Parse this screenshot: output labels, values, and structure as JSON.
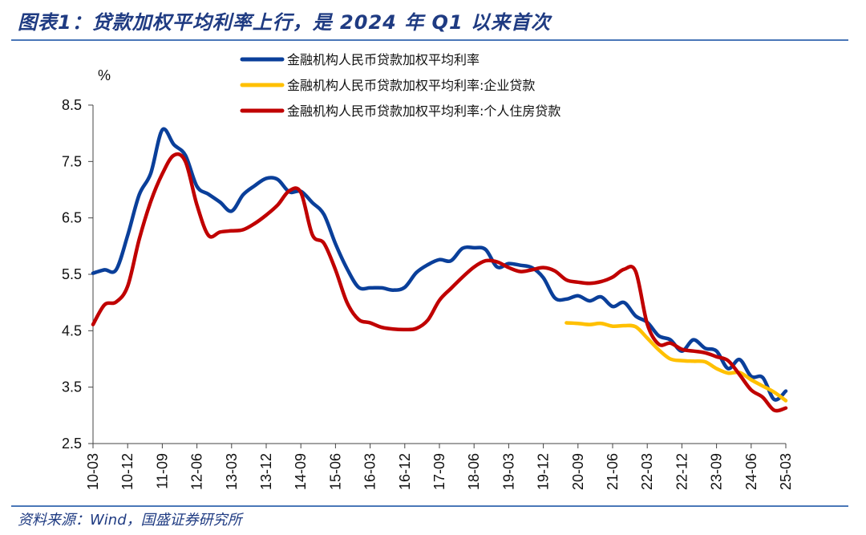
{
  "title": "图表1：贷款加权平均利率上行，是 2024 年 Q1 以来首次",
  "source": "资料来源：Wind，国盛证券研究所",
  "chart_data": {
    "type": "line",
    "ylabel": "%",
    "ylim": [
      2.5,
      8.5
    ],
    "yticks": [
      "8.5",
      "7.5",
      "6.5",
      "5.5",
      "4.5",
      "3.5",
      "2.5"
    ],
    "xticks": [
      "10-03",
      "10-12",
      "11-09",
      "12-06",
      "13-03",
      "13-12",
      "14-09",
      "15-06",
      "16-03",
      "16-12",
      "17-09",
      "18-06",
      "19-03",
      "19-12",
      "20-09",
      "21-06",
      "22-03",
      "22-12",
      "23-09",
      "24-06",
      "25-03"
    ],
    "legend_position": "top",
    "series": [
      {
        "name": "金融机构人民币贷款加权平均利率",
        "color": "#0a3f9a",
        "points": [
          [
            "10-03",
            5.52
          ],
          [
            "10-06",
            5.58
          ],
          [
            "10-09",
            5.58
          ],
          [
            "10-12",
            6.19
          ],
          [
            "11-03",
            6.91
          ],
          [
            "11-06",
            7.29
          ],
          [
            "11-09",
            8.06
          ],
          [
            "11-12",
            7.8
          ],
          [
            "12-03",
            7.61
          ],
          [
            "12-06",
            7.06
          ],
          [
            "12-09",
            6.92
          ],
          [
            "12-12",
            6.78
          ],
          [
            "13-03",
            6.62
          ],
          [
            "13-06",
            6.91
          ],
          [
            "13-09",
            7.07
          ],
          [
            "13-12",
            7.2
          ],
          [
            "14-03",
            7.18
          ],
          [
            "14-06",
            6.96
          ],
          [
            "14-09",
            6.97
          ],
          [
            "14-12",
            6.77
          ],
          [
            "15-03",
            6.56
          ],
          [
            "15-06",
            6.04
          ],
          [
            "15-09",
            5.6
          ],
          [
            "15-12",
            5.27
          ],
          [
            "16-03",
            5.26
          ],
          [
            "16-06",
            5.26
          ],
          [
            "16-09",
            5.22
          ],
          [
            "16-12",
            5.27
          ],
          [
            "17-03",
            5.53
          ],
          [
            "17-06",
            5.67
          ],
          [
            "17-09",
            5.76
          ],
          [
            "17-12",
            5.74
          ],
          [
            "18-03",
            5.96
          ],
          [
            "18-06",
            5.97
          ],
          [
            "18-09",
            5.94
          ],
          [
            "18-12",
            5.63
          ],
          [
            "19-03",
            5.69
          ],
          [
            "19-06",
            5.66
          ],
          [
            "19-09",
            5.62
          ],
          [
            "19-12",
            5.44
          ],
          [
            "20-03",
            5.08
          ],
          [
            "20-06",
            5.06
          ],
          [
            "20-09",
            5.12
          ],
          [
            "20-12",
            5.03
          ],
          [
            "21-03",
            5.1
          ],
          [
            "21-06",
            4.93
          ],
          [
            "21-09",
            5.0
          ],
          [
            "21-12",
            4.76
          ],
          [
            "22-03",
            4.65
          ],
          [
            "22-06",
            4.41
          ],
          [
            "22-09",
            4.34
          ],
          [
            "22-12",
            4.14
          ],
          [
            "23-03",
            4.34
          ],
          [
            "23-06",
            4.19
          ],
          [
            "23-09",
            4.14
          ],
          [
            "23-12",
            3.83
          ],
          [
            "24-03",
            3.99
          ],
          [
            "24-06",
            3.69
          ],
          [
            "24-09",
            3.67
          ],
          [
            "24-12",
            3.28
          ],
          [
            "25-03",
            3.43
          ]
        ]
      },
      {
        "name": "金融机构人民币贷款加权平均利率:企业贷款",
        "color": "#ffc000",
        "points": [
          [
            "20-06",
            4.64
          ],
          [
            "20-09",
            4.63
          ],
          [
            "20-12",
            4.61
          ],
          [
            "21-03",
            4.63
          ],
          [
            "21-06",
            4.58
          ],
          [
            "21-09",
            4.59
          ],
          [
            "21-12",
            4.57
          ],
          [
            "22-03",
            4.37
          ],
          [
            "22-06",
            4.16
          ],
          [
            "22-09",
            4.0
          ],
          [
            "22-12",
            3.97
          ],
          [
            "23-03",
            3.96
          ],
          [
            "23-06",
            3.95
          ],
          [
            "23-09",
            3.83
          ],
          [
            "23-12",
            3.75
          ],
          [
            "24-03",
            3.76
          ],
          [
            "24-06",
            3.63
          ],
          [
            "24-09",
            3.52
          ],
          [
            "24-12",
            3.41
          ],
          [
            "25-03",
            3.26
          ]
        ]
      },
      {
        "name": "金融机构人民币贷款加权平均利率:个人住房贷款",
        "color": "#c00000",
        "points": [
          [
            "10-03",
            4.61
          ],
          [
            "10-06",
            4.96
          ],
          [
            "10-09",
            5.01
          ],
          [
            "10-12",
            5.29
          ],
          [
            "11-03",
            6.12
          ],
          [
            "11-06",
            6.79
          ],
          [
            "11-09",
            7.28
          ],
          [
            "11-12",
            7.61
          ],
          [
            "12-03",
            7.5
          ],
          [
            "12-06",
            6.73
          ],
          [
            "12-09",
            6.19
          ],
          [
            "12-12",
            6.25
          ],
          [
            "13-03",
            6.27
          ],
          [
            "13-06",
            6.29
          ],
          [
            "13-09",
            6.4
          ],
          [
            "13-12",
            6.55
          ],
          [
            "14-03",
            6.73
          ],
          [
            "14-06",
            6.98
          ],
          [
            "14-09",
            6.95
          ],
          [
            "14-12",
            6.2
          ],
          [
            "15-03",
            6.05
          ],
          [
            "15-06",
            5.58
          ],
          [
            "15-09",
            5.0
          ],
          [
            "15-12",
            4.7
          ],
          [
            "16-03",
            4.64
          ],
          [
            "16-06",
            4.56
          ],
          [
            "16-09",
            4.53
          ],
          [
            "16-12",
            4.52
          ],
          [
            "17-03",
            4.54
          ],
          [
            "17-06",
            4.69
          ],
          [
            "17-09",
            5.04
          ],
          [
            "17-12",
            5.25
          ],
          [
            "18-03",
            5.45
          ],
          [
            "18-06",
            5.63
          ],
          [
            "18-09",
            5.74
          ],
          [
            "18-12",
            5.72
          ],
          [
            "19-03",
            5.62
          ],
          [
            "19-06",
            5.55
          ],
          [
            "19-09",
            5.58
          ],
          [
            "19-12",
            5.62
          ],
          [
            "20-03",
            5.56
          ],
          [
            "20-06",
            5.4
          ],
          [
            "20-09",
            5.36
          ],
          [
            "20-12",
            5.34
          ],
          [
            "21-03",
            5.37
          ],
          [
            "21-06",
            5.45
          ],
          [
            "21-09",
            5.59
          ],
          [
            "21-12",
            5.55
          ],
          [
            "22-03",
            4.62
          ],
          [
            "22-06",
            4.26
          ],
          [
            "22-09",
            4.28
          ],
          [
            "22-12",
            4.17
          ],
          [
            "23-03",
            4.14
          ],
          [
            "23-06",
            4.11
          ],
          [
            "23-09",
            4.04
          ],
          [
            "23-12",
            3.97
          ],
          [
            "24-03",
            3.72
          ],
          [
            "24-06",
            3.45
          ],
          [
            "24-09",
            3.32
          ],
          [
            "24-12",
            3.09
          ],
          [
            "25-03",
            3.13
          ]
        ]
      }
    ]
  }
}
